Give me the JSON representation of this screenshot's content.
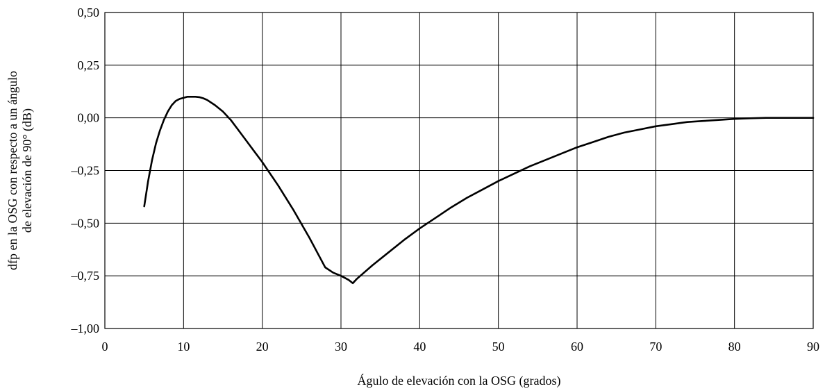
{
  "chart_data": {
    "type": "line",
    "title": "",
    "xlabel": "Águlo de elevación con la OSG (grados)",
    "ylabel": [
      "dfp en la OSG con respecto a un ángulo",
      "de elevación de 90° (dB)"
    ],
    "xlim": [
      0,
      90
    ],
    "ylim": [
      -1.0,
      0.5
    ],
    "grid": true,
    "legend": "none",
    "x_ticks": [
      0,
      10,
      20,
      30,
      40,
      50,
      60,
      70,
      80,
      90
    ],
    "x_tick_labels": [
      "0",
      "10",
      "20",
      "30",
      "40",
      "50",
      "60",
      "70",
      "80",
      "90"
    ],
    "y_ticks": [
      0.5,
      0.25,
      0.0,
      -0.25,
      -0.5,
      -0.75,
      -1.0
    ],
    "y_tick_labels": [
      "0,50",
      "0,25",
      "0,00",
      "–0,25",
      "–0,50",
      "–0,75",
      "–1,00"
    ],
    "series": [
      {
        "color": "#000000",
        "x": [
          5.0,
          5.5,
          6.0,
          6.5,
          7.0,
          7.5,
          8.0,
          8.5,
          9.0,
          9.5,
          10.0,
          10.5,
          11.0,
          11.5,
          12.0,
          12.5,
          13.0,
          14.0,
          15.0,
          16.0,
          17.0,
          18.0,
          19.0,
          20.0,
          22.0,
          24.0,
          26.0,
          27.0,
          28.0,
          29.0,
          30.0,
          30.5,
          31.0,
          31.5,
          32.0,
          34.0,
          36.0,
          38.0,
          40.0,
          42.0,
          44.0,
          46.0,
          48.0,
          50.0,
          52.0,
          54.0,
          56.0,
          58.0,
          60.0,
          62.0,
          64.0,
          66.0,
          68.0,
          70.0,
          72.0,
          74.0,
          76.0,
          78.0,
          80.0,
          82.0,
          84.0,
          86.0,
          88.0,
          90.0
        ],
        "y": [
          -0.42,
          -0.3,
          -0.2,
          -0.12,
          -0.06,
          -0.01,
          0.03,
          0.06,
          0.08,
          0.09,
          0.095,
          0.1,
          0.1,
          0.1,
          0.098,
          0.093,
          0.085,
          0.06,
          0.03,
          -0.01,
          -0.06,
          -0.11,
          -0.16,
          -0.21,
          -0.32,
          -0.44,
          -0.57,
          -0.64,
          -0.71,
          -0.735,
          -0.75,
          -0.76,
          -0.77,
          -0.785,
          -0.765,
          -0.7,
          -0.64,
          -0.58,
          -0.525,
          -0.475,
          -0.425,
          -0.38,
          -0.34,
          -0.3,
          -0.265,
          -0.23,
          -0.2,
          -0.17,
          -0.14,
          -0.115,
          -0.09,
          -0.07,
          -0.055,
          -0.04,
          -0.03,
          -0.02,
          -0.015,
          -0.01,
          -0.005,
          -0.002,
          0.0,
          0.0,
          0.0,
          0.0
        ]
      }
    ]
  }
}
